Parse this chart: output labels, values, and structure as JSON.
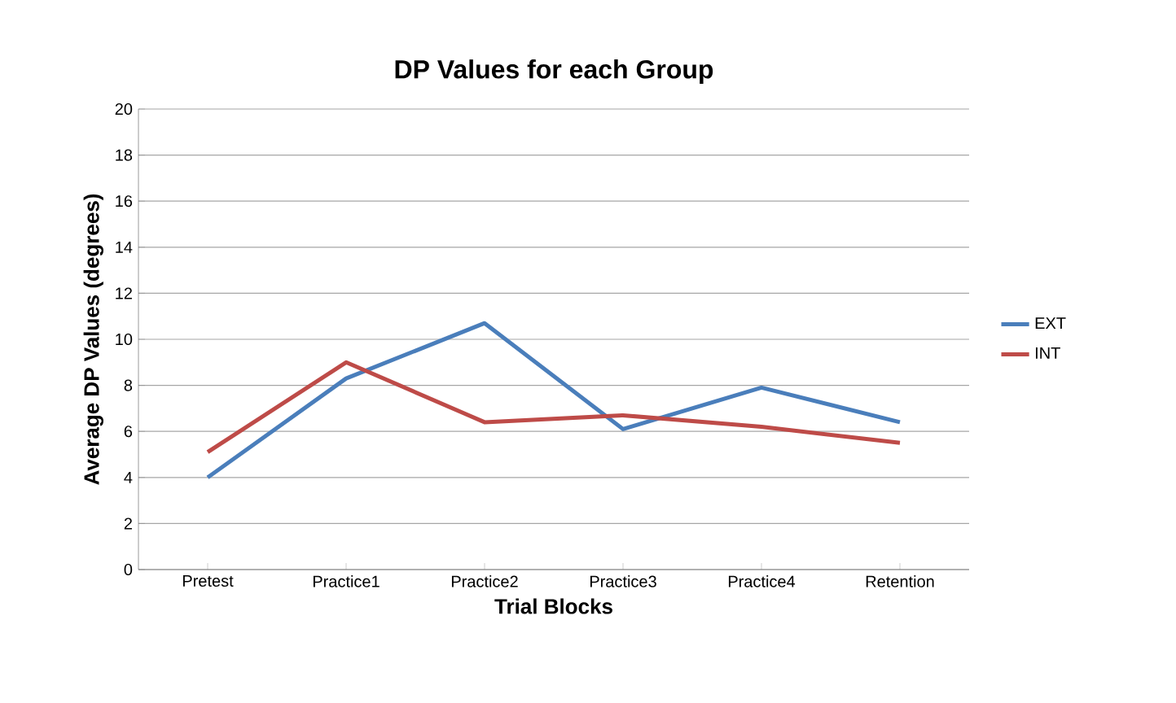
{
  "chart_data": {
    "type": "line",
    "title": "DP Values for each Group",
    "xlabel": "Trial Blocks",
    "ylabel": "Average DP Values (degrees)",
    "categories": [
      "Pretest",
      "Practice1",
      "Practice2",
      "Practice3",
      "Practice4",
      "Retention"
    ],
    "series": [
      {
        "name": "EXT",
        "color": "#4a7ebb",
        "values": [
          4.0,
          8.3,
          10.7,
          6.1,
          7.9,
          6.4
        ]
      },
      {
        "name": "INT",
        "color": "#be4b48",
        "values": [
          5.1,
          9.0,
          6.4,
          6.7,
          6.2,
          5.5
        ]
      }
    ],
    "ylim": [
      0,
      20
    ],
    "yticks": [
      0,
      2,
      4,
      6,
      8,
      10,
      12,
      14,
      16,
      18,
      20
    ],
    "grid": "y",
    "legend": "right",
    "marker": "none",
    "line_style": "solid"
  }
}
